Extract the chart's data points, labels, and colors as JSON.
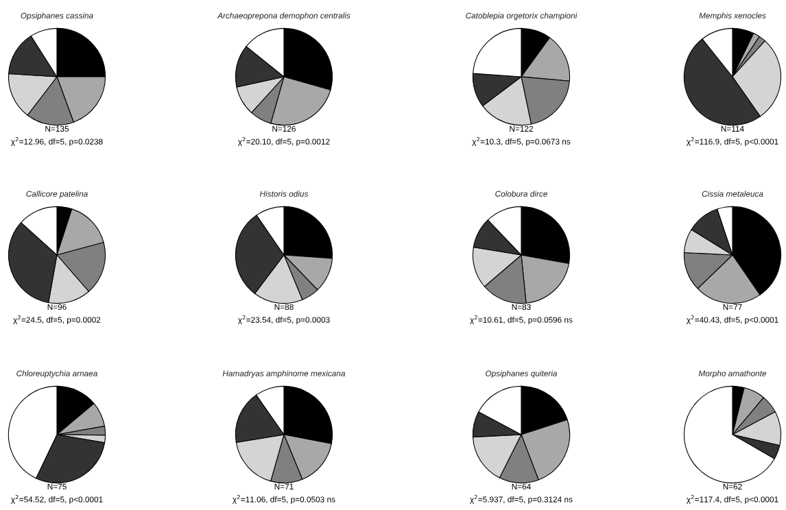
{
  "chart_data": [
    {
      "type": "pie",
      "title": "Opsiphanes cassina",
      "categories": [
        null,
        null,
        null,
        null,
        null,
        null
      ],
      "values": [
        25,
        19.4,
        16,
        15.6,
        15,
        9
      ],
      "colors": [
        "#000000",
        "#a8a8a8",
        "#808080",
        "#d4d4d4",
        "#333333",
        "#ffffff"
      ],
      "annotations": [
        "N=135",
        "χ$^{2}$=12.96, df=5, p=0.0238"
      ]
    },
    {
      "type": "pie",
      "title": "Archaeoprepona demophon centralis",
      "categories": [
        null,
        null,
        null,
        null,
        null,
        null
      ],
      "values": [
        29.4,
        25,
        7.3,
        9.9,
        14.2,
        14.2
      ],
      "colors": [
        "#000000",
        "#a8a8a8",
        "#808080",
        "#d4d4d4",
        "#333333",
        "#ffffff"
      ],
      "annotations": [
        "N=126",
        "χ$^{2}$=20.10, df=5, p=0.0012"
      ]
    },
    {
      "type": "pie",
      "title": "Catoblepia orgetorix championi",
      "categories": [
        null,
        null,
        null,
        null,
        null,
        null
      ],
      "values": [
        10,
        16.4,
        20.3,
        18,
        11.4,
        23.9
      ],
      "colors": [
        "#000000",
        "#a8a8a8",
        "#808080",
        "#d4d4d4",
        "#333333",
        "#ffffff"
      ],
      "annotations": [
        "N=122",
        "χ$^{2}$=10.3, df=5, p=0.0673 ns"
      ]
    },
    {
      "type": "pie",
      "title": "Memphis xenocles",
      "categories": [
        null,
        null,
        null,
        null,
        null,
        null
      ],
      "values": [
        7.2,
        2.2,
        2.3,
        28.6,
        49,
        10.7
      ],
      "colors": [
        "#000000",
        "#a8a8a8",
        "#808080",
        "#d4d4d4",
        "#333333",
        "#ffffff"
      ],
      "annotations": [
        "N=114",
        "χ$^{2}$=116.9, df=5, p<0.0001"
      ]
    },
    {
      "type": "pie",
      "title": "Callicore patelina",
      "categories": [
        null,
        null,
        null,
        null,
        null,
        null
      ],
      "values": [
        5,
        15.8,
        17.8,
        14.2,
        33.9,
        13.3
      ],
      "colors": [
        "#000000",
        "#a8a8a8",
        "#808080",
        "#d4d4d4",
        "#333333",
        "#ffffff"
      ],
      "annotations": [
        "N=96",
        "χ$^{2}$=24.5, df=5, p=0.0002"
      ]
    },
    {
      "type": "pie",
      "title": "Historis odius",
      "categories": [
        null,
        null,
        null,
        null,
        null,
        null
      ],
      "values": [
        26.1,
        11.7,
        6,
        16.5,
        30.1,
        9.6
      ],
      "colors": [
        "#000000",
        "#a8a8a8",
        "#808080",
        "#d4d4d4",
        "#333333",
        "#ffffff"
      ],
      "annotations": [
        "N=88",
        "χ$^{2}$=23.54, df=5, p=0.0003"
      ]
    },
    {
      "type": "pie",
      "title": "Colobura dirce",
      "categories": [
        null,
        null,
        null,
        null,
        null,
        null
      ],
      "values": [
        27.8,
        20.6,
        15.3,
        13.9,
        10.3,
        12.1
      ],
      "colors": [
        "#000000",
        "#a8a8a8",
        "#808080",
        "#d4d4d4",
        "#333333",
        "#ffffff"
      ],
      "annotations": [
        "N=83",
        "χ$^{2}$=10.61, df=5, p=0.0596 ns"
      ]
    },
    {
      "type": "pie",
      "title": "Cissia metaleuca",
      "categories": [
        null,
        null,
        null,
        null,
        null,
        null
      ],
      "values": [
        40.4,
        22.4,
        13,
        8,
        11.1,
        5.1
      ],
      "colors": [
        "#000000",
        "#a8a8a8",
        "#808080",
        "#d4d4d4",
        "#333333",
        "#ffffff"
      ],
      "annotations": [
        "N=77",
        "χ$^{2}$=40.43, df=5, p<0.0001"
      ]
    },
    {
      "type": "pie",
      "title": "Chloreuptychia arnaea",
      "categories": [
        null,
        null,
        null,
        null,
        null,
        null
      ],
      "values": [
        13.9,
        8.3,
        3,
        2.5,
        29.4,
        42.9
      ],
      "colors": [
        "#000000",
        "#a8a8a8",
        "#808080",
        "#d4d4d4",
        "#333333",
        "#ffffff"
      ],
      "annotations": [
        "N=75",
        "χ$^{2}$=54.52, df=5, p<0.0001"
      ]
    },
    {
      "type": "pie",
      "title": "Hamadryas amphinome mexicana",
      "categories": [
        null,
        null,
        null,
        null,
        null,
        null
      ],
      "values": [
        28,
        15.8,
        10.6,
        18,
        17.9,
        9.7
      ],
      "colors": [
        "#000000",
        "#a8a8a8",
        "#808080",
        "#d4d4d4",
        "#333333",
        "#ffffff"
      ],
      "annotations": [
        "N=71",
        "χ$^{2}$=11.06, df=5, p=0.0503 ns"
      ]
    },
    {
      "type": "pie",
      "title": "Opsiphanes quiteria",
      "categories": [
        null,
        null,
        null,
        null,
        null,
        null
      ],
      "values": [
        20,
        24.2,
        13.2,
        16.8,
        8.6,
        17.2
      ],
      "colors": [
        "#000000",
        "#a8a8a8",
        "#808080",
        "#d4d4d4",
        "#333333",
        "#ffffff"
      ],
      "annotations": [
        "N=64",
        "χ$^{2}$=5.937, df=5, p=0.3124 ns"
      ]
    },
    {
      "type": "pie",
      "title": "Morpho amathonte",
      "categories": [
        null,
        null,
        null,
        null,
        null,
        null
      ],
      "values": [
        3.9,
        7.2,
        6.1,
        11.4,
        4.7,
        66.7
      ],
      "colors": [
        "#000000",
        "#a8a8a8",
        "#808080",
        "#d4d4d4",
        "#333333",
        "#ffffff"
      ],
      "annotations": [
        "N=62",
        "χ$^{2}$=117.4, df=5, p<0.0001"
      ]
    }
  ]
}
